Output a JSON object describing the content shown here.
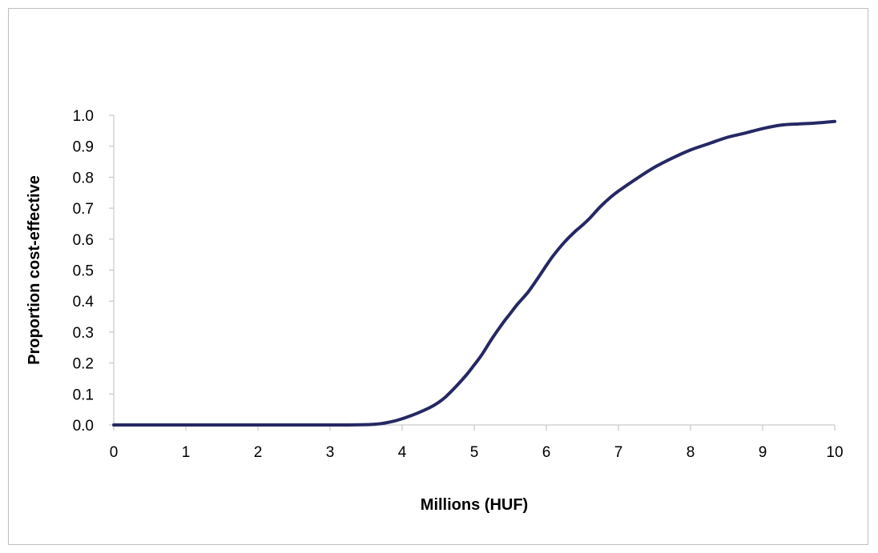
{
  "chart_data": {
    "type": "line",
    "title": "",
    "xlabel": "Millions (HUF)",
    "ylabel": "Proportion cost-effective",
    "xlim": [
      0,
      10
    ],
    "ylim": [
      0,
      1
    ],
    "x_ticks": [
      0,
      1,
      2,
      3,
      4,
      5,
      6,
      7,
      8,
      9,
      10
    ],
    "x_tick_labels": [
      "0",
      "1",
      "2",
      "3",
      "4",
      "5",
      "6",
      "7",
      "8",
      "9",
      "10"
    ],
    "y_ticks": [
      0,
      0.1,
      0.2,
      0.3,
      0.4,
      0.5,
      0.6,
      0.7,
      0.8,
      0.9,
      1.0
    ],
    "y_tick_labels": [
      "0.0",
      "0.1",
      "0.2",
      "0.3",
      "0.4",
      "0.5",
      "0.6",
      "0.7",
      "0.8",
      "0.9",
      "1.0"
    ],
    "grid": false,
    "legend": "none",
    "series": [
      {
        "color": "#262864",
        "x": [
          0,
          0.5,
          1,
          1.5,
          2,
          2.5,
          3,
          3.25,
          3.5,
          3.6,
          3.7,
          3.8,
          3.9,
          4.0,
          4.1,
          4.2,
          4.3,
          4.4,
          4.5,
          4.6,
          4.75,
          4.9,
          5.0,
          5.1,
          5.25,
          5.4,
          5.5,
          5.6,
          5.75,
          5.9,
          6.0,
          6.1,
          6.25,
          6.4,
          6.5,
          6.6,
          6.75,
          6.9,
          7.0,
          7.25,
          7.5,
          7.75,
          8.0,
          8.25,
          8.5,
          8.75,
          9.0,
          9.25,
          9.5,
          9.75,
          10.0
        ],
        "y": [
          0,
          0,
          0,
          0,
          0,
          0,
          0,
          0,
          0.001,
          0.002,
          0.004,
          0.008,
          0.013,
          0.02,
          0.028,
          0.037,
          0.047,
          0.058,
          0.072,
          0.09,
          0.125,
          0.164,
          0.194,
          0.225,
          0.28,
          0.33,
          0.36,
          0.39,
          0.43,
          0.48,
          0.515,
          0.548,
          0.59,
          0.625,
          0.645,
          0.667,
          0.705,
          0.737,
          0.755,
          0.795,
          0.832,
          0.862,
          0.888,
          0.908,
          0.928,
          0.942,
          0.957,
          0.968,
          0.972,
          0.975,
          0.98
        ]
      }
    ]
  }
}
